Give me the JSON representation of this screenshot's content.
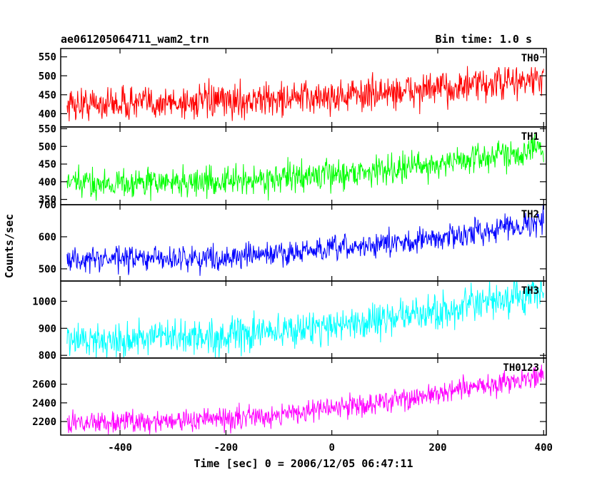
{
  "chart_data": {
    "type": "line",
    "title": "ae061205064711_wam2_trn",
    "bin_time": "Bin time: 1.0 s",
    "xlabel": "Time [sec] 0 = 2006/12/05 06:47:11",
    "ylabel": "Counts/sec",
    "xlim": [
      -512,
      405
    ],
    "x_ticks": [
      -400,
      -200,
      0,
      200,
      400
    ],
    "x_data_range": [
      -500,
      400
    ],
    "bin_width": 1.0,
    "grid": false,
    "series": [
      {
        "name": "TH0",
        "color": "#ff0000",
        "ylim": [
          365,
          572
        ],
        "y_ticks": [
          400,
          450,
          500,
          550
        ],
        "trend": [
          [
            -500,
            425
          ],
          [
            -200,
            432
          ],
          [
            0,
            445
          ],
          [
            200,
            465
          ],
          [
            400,
            490
          ]
        ],
        "noise_amplitude": 70
      },
      {
        "name": "TH1",
        "color": "#00ff00",
        "ylim": [
          335,
          555
        ],
        "y_ticks": [
          350,
          400,
          450,
          500,
          550
        ],
        "trend": [
          [
            -500,
            395
          ],
          [
            -200,
            400
          ],
          [
            0,
            420
          ],
          [
            200,
            450
          ],
          [
            400,
            495
          ]
        ],
        "noise_amplitude": 65
      },
      {
        "name": "TH2",
        "color": "#0000ff",
        "ylim": [
          462,
          700
        ],
        "y_ticks": [
          500,
          600,
          700
        ],
        "trend": [
          [
            -500,
            528
          ],
          [
            -200,
            535
          ],
          [
            0,
            560
          ],
          [
            200,
            595
          ],
          [
            400,
            650
          ]
        ],
        "noise_amplitude": 60
      },
      {
        "name": "TH3",
        "color": "#00ffff",
        "ylim": [
          790,
          1075
        ],
        "y_ticks": [
          800,
          900,
          1000
        ],
        "trend": [
          [
            -500,
            855
          ],
          [
            -200,
            870
          ],
          [
            0,
            910
          ],
          [
            200,
            960
          ],
          [
            400,
            1030
          ]
        ],
        "noise_amplitude": 100
      },
      {
        "name": "TH0123",
        "color": "#ff00ff",
        "ylim": [
          2055,
          2880
        ],
        "y_ticks": [
          2200,
          2400,
          2600
        ],
        "trend": [
          [
            -500,
            2185
          ],
          [
            -200,
            2225
          ],
          [
            0,
            2340
          ],
          [
            200,
            2490
          ],
          [
            400,
            2700
          ]
        ],
        "noise_amplitude": 190
      }
    ]
  }
}
